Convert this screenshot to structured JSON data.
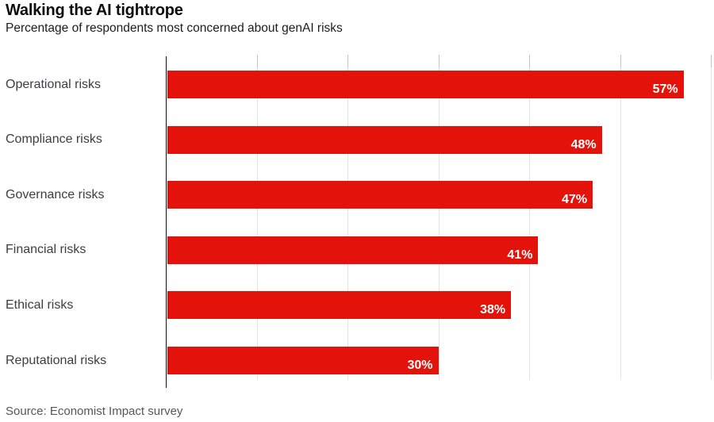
{
  "header": {
    "title": "Walking the AI tightrope",
    "subtitle": "Percentage of respondents most concerned about genAI risks"
  },
  "source_note": "Source: Economist Impact survey",
  "colors": {
    "bar": "#e3120b",
    "value_label": "#ffffff",
    "axis": "#141414",
    "gridline": "#e3e3e3",
    "title": "#0d0d0d",
    "category_label": "#3d3d42",
    "source": "#56575b"
  },
  "chart_data": {
    "type": "bar",
    "orientation": "horizontal",
    "title": "Walking the AI tightrope",
    "subtitle": "Percentage of respondents most concerned about genAI risks",
    "categories": [
      "Operational risks",
      "Compliance risks",
      "Governance risks",
      "Financial risks",
      "Ethical risks",
      "Reputational risks"
    ],
    "values": [
      57,
      48,
      47,
      41,
      38,
      30
    ],
    "value_labels": [
      "57%",
      "48%",
      "47%",
      "41%",
      "38%",
      "30%"
    ],
    "xlabel": "",
    "ylabel": "",
    "xlim": [
      0,
      60
    ],
    "xticks": [
      10,
      20,
      30,
      40,
      50,
      60
    ],
    "grid": "vertical-only",
    "value_labels_position": "inside-end",
    "legend": "none"
  }
}
